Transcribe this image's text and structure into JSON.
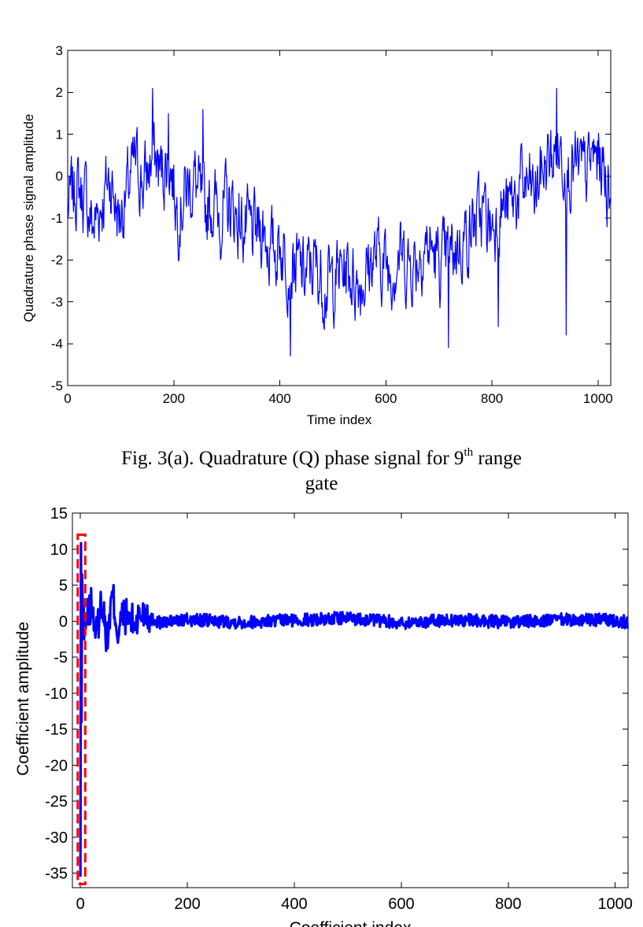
{
  "figure_a": {
    "caption_text": "Fig. 3(a). Quadrature (Q) phase signal for 9",
    "caption_sup": "th",
    "caption_rest": " range",
    "caption_line2": "gate",
    "chart_data": {
      "type": "line",
      "xlabel": "Time index",
      "ylabel": "Quadrature phase signal amplitude",
      "xlim": [
        0,
        1024
      ],
      "ylim": [
        -5,
        3
      ],
      "xticks": [
        0,
        200,
        400,
        600,
        800,
        1000
      ],
      "yticks": [
        -5,
        -4,
        -3,
        -2,
        -1,
        0,
        1,
        2,
        3
      ],
      "grid": false,
      "series": [
        {
          "x": [
            0,
            16,
            32,
            48,
            64,
            80,
            96,
            112,
            128,
            144,
            160,
            176,
            192,
            208,
            224,
            240,
            256,
            272,
            288,
            304,
            320,
            336,
            352,
            368,
            384,
            400,
            416,
            432,
            448,
            464,
            480,
            496,
            512,
            528,
            544,
            560,
            576,
            592,
            608,
            624,
            640,
            656,
            672,
            688,
            704,
            720,
            736,
            752,
            768,
            784,
            800,
            816,
            832,
            848,
            864,
            880,
            896,
            912,
            928,
            944,
            960,
            976,
            992,
            1008,
            1023
          ],
          "values": [
            -0.8,
            -0.2,
            -0.5,
            -1.2,
            -0.6,
            0.0,
            -1.0,
            -0.4,
            0.3,
            -0.2,
            0.5,
            0.1,
            0.4,
            -0.8,
            -0.3,
            -0.1,
            -0.9,
            -0.6,
            -0.9,
            -0.7,
            -1.0,
            -1.3,
            -1.4,
            -1.2,
            -1.8,
            -1.6,
            -2.0,
            -2.2,
            -2.4,
            -2.1,
            -2.5,
            -2.6,
            -2.3,
            -2.2,
            -2.5,
            -2.4,
            -1.9,
            -2.0,
            -2.2,
            -1.8,
            -2.1,
            -2.0,
            -1.6,
            -1.8,
            -2.2,
            -1.9,
            -1.6,
            -1.4,
            -1.1,
            -0.9,
            -1.2,
            -0.7,
            -0.8,
            -0.4,
            -0.2,
            -0.5,
            0.2,
            0.4,
            0.6,
            0.2,
            0.1,
            0.0,
            0.5,
            0.3,
            -0.4
          ],
          "amplitude": 0.9,
          "peaks": [
            [
              160,
              2.1
            ],
            [
              190,
              1.5
            ],
            [
              255,
              1.6
            ],
            [
              922,
              2.1
            ],
            [
              420,
              -4.3
            ],
            [
              718,
              -4.1
            ],
            [
              812,
              -3.6
            ],
            [
              940,
              -3.8
            ]
          ]
        }
      ]
    }
  },
  "figure_b": {
    "chart_data": {
      "type": "line",
      "xlabel": "Coefficient index",
      "ylabel": "Coefficient amplitude",
      "xlim": [
        -15,
        1024
      ],
      "ylim": [
        -37,
        15
      ],
      "xticks": [
        0,
        200,
        400,
        600,
        800,
        1000
      ],
      "yticks": [
        15,
        10,
        5,
        0,
        -5,
        -10,
        -15,
        -20,
        -25,
        -30,
        -35
      ],
      "grid": false,
      "series": [
        {
          "x": [
            0,
            1,
            2,
            3,
            4,
            5,
            6,
            7,
            8,
            9,
            10,
            20,
            30,
            40,
            50,
            60,
            70,
            80,
            100,
            120,
            150,
            200,
            300,
            400,
            500,
            600,
            700,
            800,
            900,
            1000,
            1023
          ],
          "values": [
            -35.5,
            10.8,
            -14.0,
            6.5,
            3.0,
            -1.0,
            2.0,
            -2.5,
            1.0,
            0.5,
            -1.0,
            3.8,
            -3.0,
            5.0,
            -4.6,
            6.5,
            -3.0,
            1.5,
            -0.5,
            2.5,
            -0.8,
            0.6,
            -0.5,
            0.4,
            1.5,
            -0.8,
            0.6,
            -0.5,
            0.6,
            0.4,
            -0.5
          ],
          "noise_amplitude": 0.9
        }
      ],
      "highlight_box": {
        "x": [
          -5,
          9
        ],
        "y": [
          -36.5,
          12
        ],
        "color": "#ff0000",
        "style": "dashed"
      }
    }
  }
}
